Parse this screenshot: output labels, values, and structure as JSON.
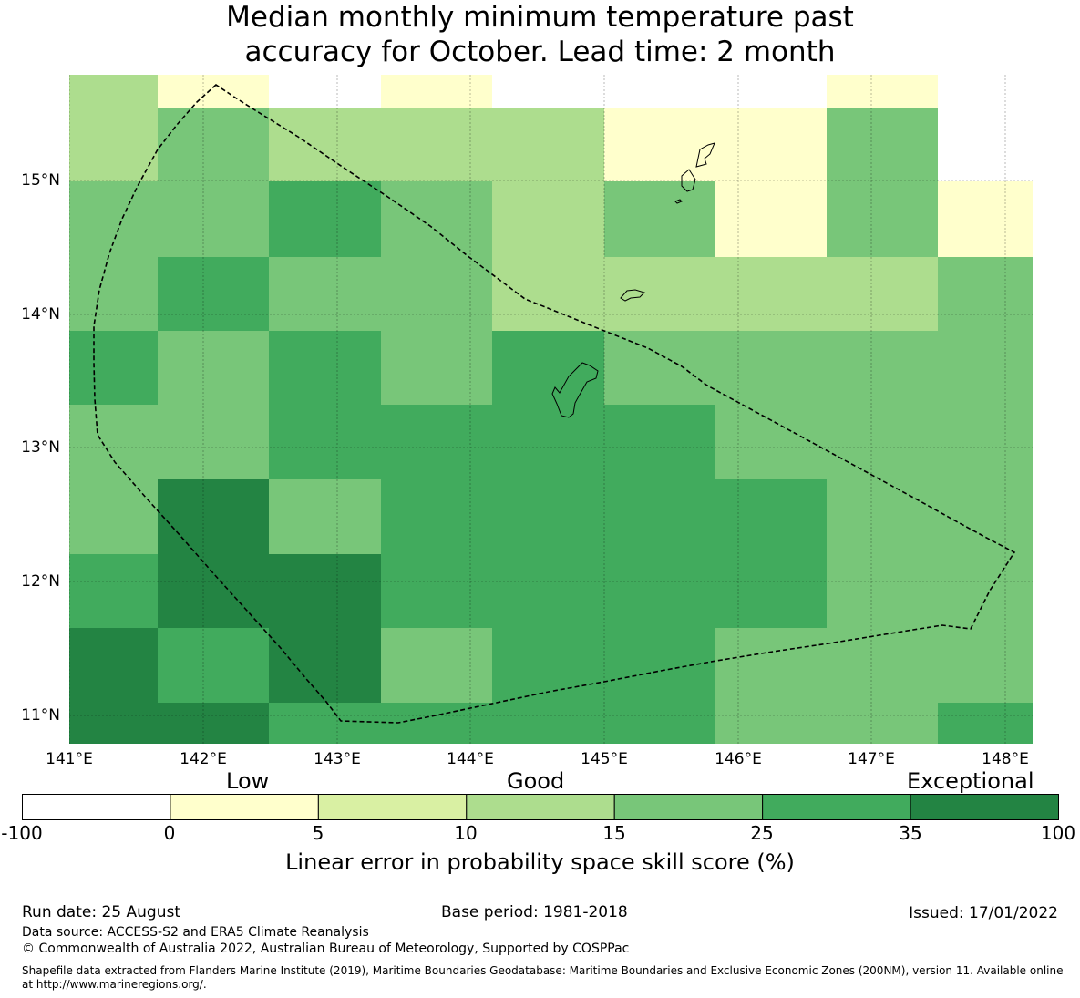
{
  "title": {
    "line1": "Median monthly minimum temperature past",
    "line2": "accuracy for October. Lead time: 2 month"
  },
  "map": {
    "lat_labels": [
      "15°N",
      "14°N",
      "13°N",
      "12°N",
      "11°N"
    ],
    "lon_labels": [
      "141°E",
      "142°E",
      "143°E",
      "144°E",
      "145°E",
      "146°E",
      "147°E",
      "148°E"
    ],
    "lon_range": [
      141.0,
      148.2
    ],
    "lat_range": [
      10.8,
      15.8
    ],
    "grid_rows_top_to_bottom": [
      [
        10,
        0,
        -1,
        0,
        -1,
        -1,
        -1,
        0,
        -1
      ],
      [
        10,
        15,
        10,
        10,
        10,
        0,
        0,
        15,
        -1
      ],
      [
        15,
        15,
        25,
        15,
        10,
        15,
        0,
        15,
        0
      ],
      [
        15,
        25,
        15,
        15,
        10,
        10,
        10,
        10,
        15
      ],
      [
        25,
        15,
        25,
        15,
        25,
        15,
        15,
        15,
        15
      ],
      [
        15,
        15,
        25,
        25,
        25,
        25,
        15,
        15,
        15
      ],
      [
        15,
        35,
        15,
        25,
        25,
        25,
        25,
        15,
        15
      ],
      [
        25,
        35,
        35,
        25,
        25,
        25,
        25,
        15,
        15
      ],
      [
        35,
        25,
        35,
        15,
        25,
        25,
        15,
        15,
        15
      ],
      [
        35,
        35,
        25,
        25,
        25,
        25,
        15,
        15,
        25
      ]
    ],
    "color_key": {
      "-1": "#ffffff",
      "0": "#ffffcc",
      "5": "#d9f0a3",
      "10": "#addd8e",
      "15": "#78c679",
      "25": "#41ab5d",
      "35": "#238443"
    }
  },
  "legend": {
    "categories": [
      "Low",
      "Good",
      "Exceptional"
    ],
    "ticks": [
      "-100",
      "0",
      "5",
      "10",
      "15",
      "25",
      "35",
      "100"
    ],
    "colors": [
      "#ffffff",
      "#ffffcc",
      "#d9f0a3",
      "#addd8e",
      "#78c679",
      "#41ab5d",
      "#238443"
    ],
    "label": "Linear error in probability space skill score (%)"
  },
  "footer": {
    "run_date": "Run date: 25 August",
    "base_period": "Base period: 1981-2018",
    "issued": "Issued: 17/01/2022",
    "data_source": "Data source: ACCESS-S2 and ERA5 Climate Reanalysis",
    "copyright": "© Commonwealth of Australia 2022, Australian Bureau of Meteorology, Supported by COSPPac",
    "shapefile": "Shapefile data extracted from Flanders Marine Institute (2019), Maritime Boundaries Geodatabase: Maritime Boundaries and Exclusive Economic Zones (200NM), version 11. Available online at http://www.marineregions.org/."
  }
}
